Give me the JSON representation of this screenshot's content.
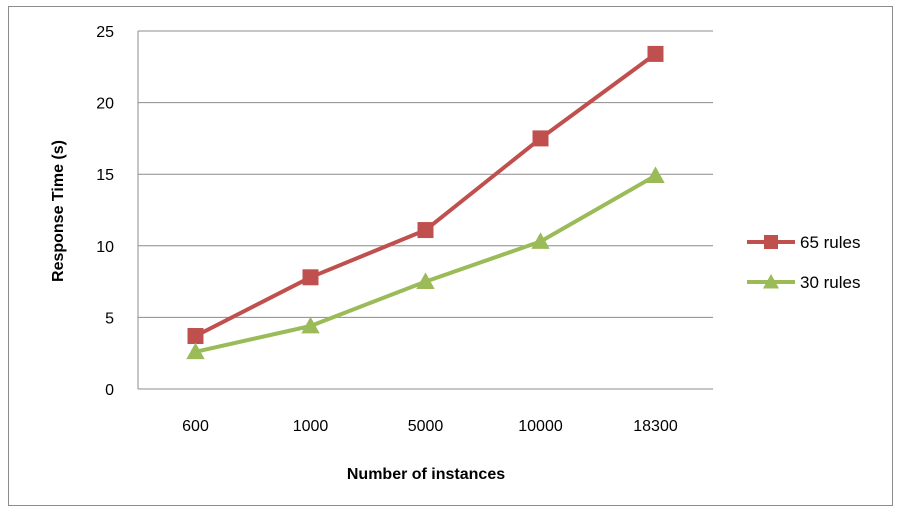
{
  "chart_data": {
    "type": "line",
    "title": "",
    "xlabel": "Number of instances",
    "ylabel": "Response Time (s)",
    "categories": [
      "600",
      "1000",
      "5000",
      "10000",
      "18300"
    ],
    "ylim": [
      0,
      25
    ],
    "yticks": [
      "0",
      "5",
      "10",
      "15",
      "20",
      "25"
    ],
    "grid": true,
    "legend_position": "right",
    "series": [
      {
        "name": "65 rules",
        "values": [
          3.7,
          7.8,
          11.1,
          17.5,
          23.4
        ],
        "color": "#c0504d",
        "marker": "square"
      },
      {
        "name": "30 rules",
        "values": [
          2.6,
          4.4,
          7.5,
          10.3,
          14.9
        ],
        "color": "#9bbb59",
        "marker": "triangle"
      }
    ]
  }
}
